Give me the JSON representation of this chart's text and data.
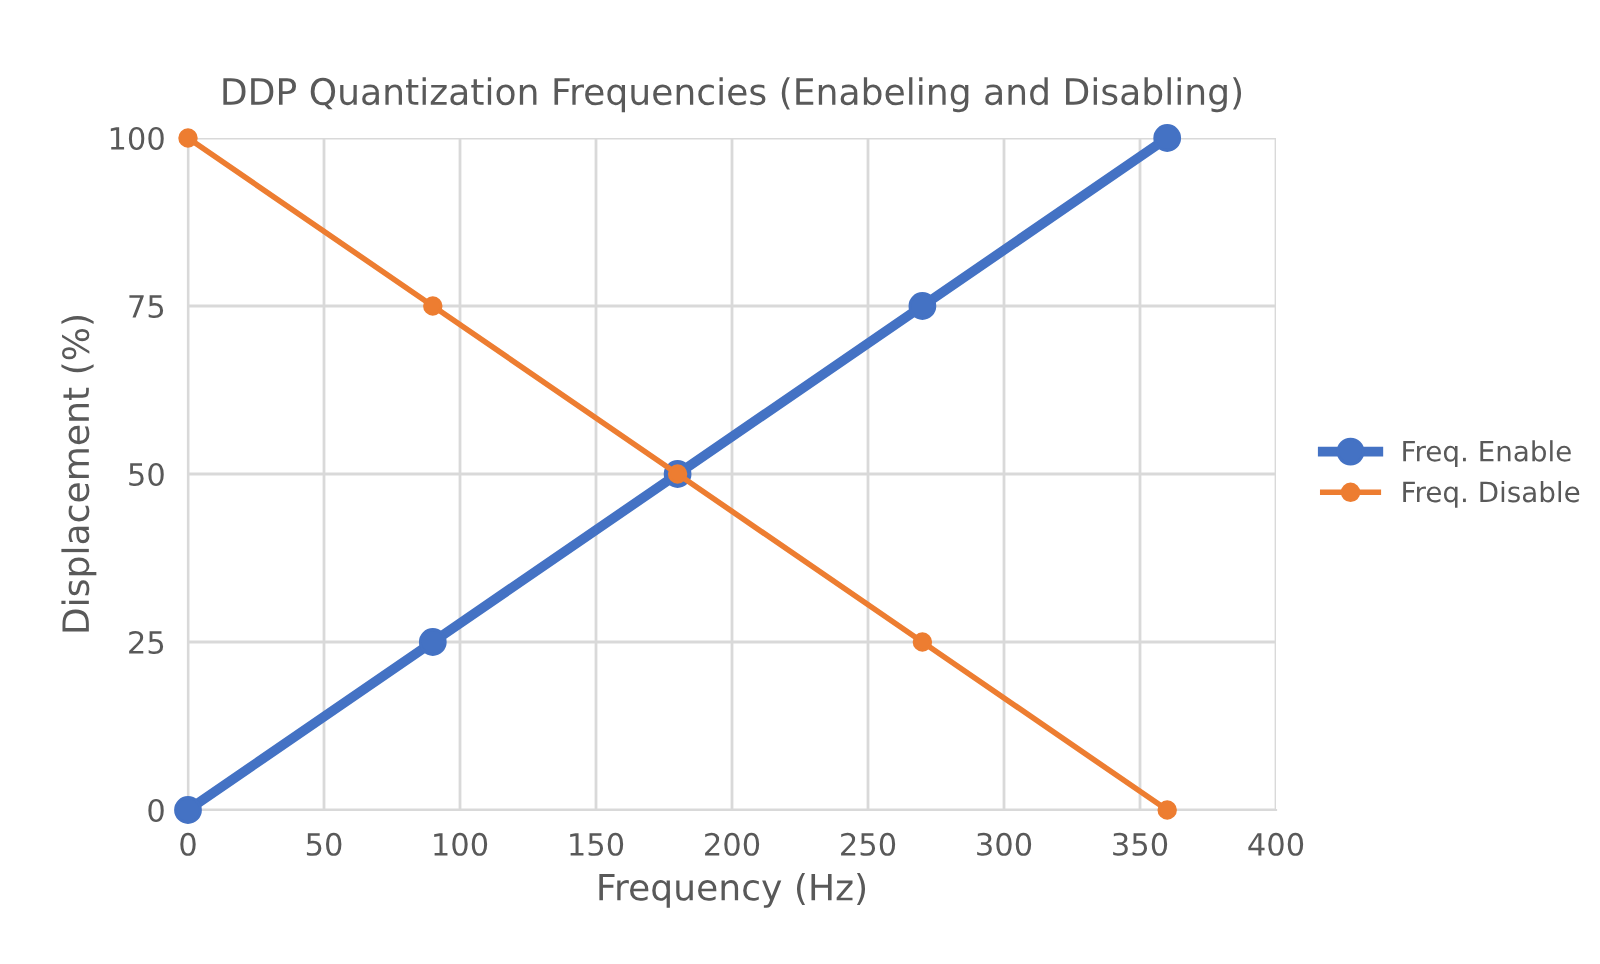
{
  "chart_data": {
    "type": "line",
    "title": "DDP Quantization Frequencies (Enabeling and Disabling)",
    "xlabel": "Frequency (Hz)",
    "ylabel": "Displacement (%)",
    "x": [
      0,
      90,
      180,
      270,
      360
    ],
    "series": [
      {
        "name": "Freq. Enable",
        "color": "#4472c4",
        "values": [
          0,
          25,
          50,
          75,
          100
        ]
      },
      {
        "name": "Freq. Disable",
        "color": "#ed7d31",
        "values": [
          100,
          75,
          50,
          25,
          0
        ]
      }
    ],
    "xlim": [
      0,
      400
    ],
    "xticks": [
      0,
      50,
      100,
      150,
      200,
      250,
      300,
      350,
      400
    ],
    "ylim": [
      0,
      100
    ],
    "yticks": [
      0,
      25,
      50,
      75,
      100
    ],
    "grid": true,
    "legend": "right",
    "marker": "circle",
    "line_style": "solid"
  }
}
